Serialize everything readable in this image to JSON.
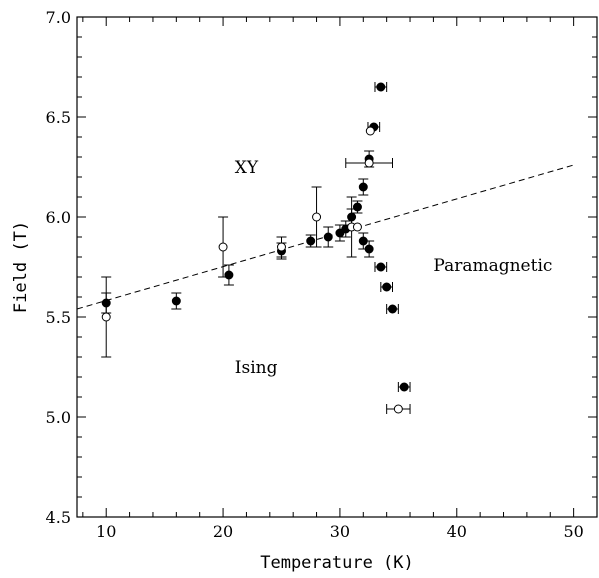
{
  "chart_data": {
    "type": "scatter",
    "title": "",
    "xlabel": "Temperature  (K)",
    "ylabel": "Field  (T)",
    "xlim": [
      7.5,
      52
    ],
    "ylim": [
      4.5,
      7.0
    ],
    "xticks": [
      10,
      20,
      30,
      40,
      50
    ],
    "yticks": [
      4.5,
      5.0,
      5.5,
      6.0,
      6.5,
      7.0
    ],
    "xtick_labels": [
      "10",
      "20",
      "30",
      "40",
      "50"
    ],
    "ytick_labels": [
      "4.5",
      "5.0",
      "5.5",
      "6.0",
      "6.5",
      "7.0"
    ],
    "grid": false,
    "annotations": [
      {
        "text": "XY",
        "x": 21,
        "y": 6.22
      },
      {
        "text": "Ising",
        "x": 21.0,
        "y": 5.22
      },
      {
        "text": "Paramagnetic",
        "x": 38.0,
        "y": 5.73
      }
    ],
    "dashed_line": {
      "x": [
        7.5,
        50
      ],
      "y": [
        5.54,
        6.26
      ]
    },
    "series": [
      {
        "marker": "filled-circle",
        "points": [
          {
            "x": 10,
            "y": 5.57,
            "yerr": 0.05
          },
          {
            "x": 16,
            "y": 5.58,
            "yerr": 0.04
          },
          {
            "x": 20.5,
            "y": 5.71,
            "yerr": 0.05
          },
          {
            "x": 25,
            "y": 5.83,
            "yerr": 0.04
          },
          {
            "x": 27.5,
            "y": 5.88,
            "yerr": 0.03
          },
          {
            "x": 29.0,
            "y": 5.9,
            "yerr": 0.05
          },
          {
            "x": 30.0,
            "y": 5.92,
            "yerr": 0.04
          },
          {
            "x": 30.5,
            "y": 5.94,
            "yerr": 0.04
          },
          {
            "x": 31.0,
            "y": 6.0,
            "yerr": 0.04
          },
          {
            "x": 31.5,
            "y": 6.05,
            "yerr": 0.03
          },
          {
            "x": 32.0,
            "y": 6.15,
            "yerr": 0.04
          },
          {
            "x": 32.5,
            "y": 6.29,
            "yerr": 0.04
          },
          {
            "x": 32.9,
            "y": 6.45,
            "xerr": 0.5
          },
          {
            "x": 33.5,
            "y": 6.65,
            "xerr": 0.5
          },
          {
            "x": 32.0,
            "y": 5.88,
            "yerr": 0.04
          },
          {
            "x": 32.5,
            "y": 5.84,
            "yerr": 0.04
          },
          {
            "x": 33.5,
            "y": 5.75,
            "xerr": 0.5
          },
          {
            "x": 34.0,
            "y": 5.65,
            "xerr": 0.5
          },
          {
            "x": 34.5,
            "y": 5.54,
            "xerr": 0.5
          },
          {
            "x": 35.5,
            "y": 5.15,
            "xerr": 0.5
          }
        ]
      },
      {
        "marker": "open-circle",
        "points": [
          {
            "x": 10,
            "y": 5.5,
            "yerr": 0.2
          },
          {
            "x": 20,
            "y": 5.85,
            "yerr": 0.15
          },
          {
            "x": 25,
            "y": 5.85,
            "yerr": 0.05
          },
          {
            "x": 28,
            "y": 6.0,
            "yerr": 0.15
          },
          {
            "x": 31.0,
            "y": 5.95,
            "yerr": 0.15
          },
          {
            "x": 31.5,
            "y": 5.95
          },
          {
            "x": 32.5,
            "y": 6.27,
            "xerr": 2.0
          },
          {
            "x": 32.6,
            "y": 6.43
          },
          {
            "x": 35.0,
            "y": 5.04,
            "xerr": 1.0
          }
        ]
      }
    ]
  }
}
